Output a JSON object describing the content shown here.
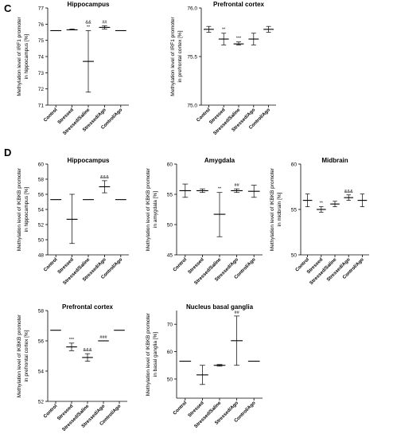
{
  "panel_letters": {
    "c": "C",
    "d": "D"
  },
  "chart_data": [
    {
      "type": "scatter",
      "title": "Hippocampus",
      "ylabel_lines": [
        "Methylation level of IRF1 promoter",
        "in hippocampus [%]"
      ],
      "categories": [
        "Control",
        "Stressed",
        "Stressed/Saline",
        "Stressed/Ago",
        "Control/Ago"
      ],
      "series": [
        {
          "values": [
            75.6,
            75.65,
            73.7,
            75.8,
            75.6
          ],
          "err_low": [
            75.6,
            75.65,
            71.8,
            75.7,
            75.6
          ],
          "err_high": [
            75.6,
            75.7,
            75.6,
            75.9,
            75.6
          ]
        }
      ],
      "annotations": [
        "",
        "",
        "&&\n**",
        "##",
        ""
      ],
      "ylim": [
        71,
        77
      ],
      "yticks": [
        "71",
        "72",
        "73",
        "74",
        "75",
        "76",
        "77"
      ]
    },
    {
      "type": "scatter",
      "title": "Prefrontal cortex",
      "ylabel_lines": [
        "Methylation level of IRF1 promoter",
        "in prefrontal cortex [%]"
      ],
      "categories": [
        "Control",
        "Stressed",
        "Stressed/Saline",
        "Stressed/Ago",
        "Control/Ago"
      ],
      "series": [
        {
          "values": [
            75.78,
            75.68,
            75.63,
            75.68,
            75.78
          ],
          "err_low": [
            75.75,
            75.62,
            75.62,
            75.62,
            75.75
          ],
          "err_high": [
            75.81,
            75.74,
            75.65,
            75.74,
            75.81
          ]
        }
      ],
      "annotations": [
        "",
        "**",
        "***",
        "",
        ""
      ],
      "ylim": [
        75.0,
        76.0
      ],
      "yticks": [
        "75.0",
        "75.5",
        "76.0"
      ]
    },
    {
      "type": "scatter",
      "title": "Hippocampus",
      "ylabel_lines": [
        "Methylation level of IKBKB promoter",
        "in hippocampus [%]"
      ],
      "categories": [
        "Control",
        "Stressed",
        "Stressed/Saline",
        "Stressed/Ago",
        "Control/Ago"
      ],
      "series": [
        {
          "values": [
            55.3,
            52.7,
            55.3,
            57.0,
            55.3
          ],
          "err_low": [
            55.3,
            49.5,
            55.3,
            56.2,
            55.3
          ],
          "err_high": [
            55.3,
            56.0,
            55.3,
            57.8,
            55.3
          ]
        }
      ],
      "annotations": [
        "",
        "",
        "",
        "&&&",
        ""
      ],
      "ylim": [
        48,
        60
      ],
      "yticks": [
        "48",
        "50",
        "52",
        "54",
        "56",
        "58",
        "60"
      ]
    },
    {
      "type": "scatter",
      "title": "Amygdala",
      "ylabel_lines": [
        "Methylation level of IKBKB promoter",
        "in amygdala [%]"
      ],
      "categories": [
        "Control",
        "Stressed",
        "Stressed/Saline",
        "Stressed/Ago",
        "Control/Ago"
      ],
      "series": [
        {
          "values": [
            55.6,
            55.6,
            51.7,
            55.6,
            55.5
          ],
          "err_low": [
            54.5,
            55.3,
            48.0,
            55.3,
            54.5
          ],
          "err_high": [
            56.7,
            55.9,
            55.3,
            55.9,
            56.5
          ]
        }
      ],
      "annotations": [
        "",
        "",
        "**",
        "##",
        ""
      ],
      "ylim": [
        45,
        60
      ],
      "yticks": [
        "45",
        "50",
        "55",
        "60"
      ]
    },
    {
      "type": "scatter",
      "title": "Midbrain",
      "ylabel_lines": [
        "Methylation level of IKBKB promoter",
        "in midbrain [%]"
      ],
      "categories": [
        "Control",
        "Stressed",
        "Stressed/Saline",
        "Stressed/Ago",
        "Control/Ago"
      ],
      "series": [
        {
          "values": [
            56.0,
            55.0,
            55.6,
            56.3,
            56.0
          ],
          "err_low": [
            55.3,
            54.7,
            55.3,
            56.0,
            55.3
          ],
          "err_high": [
            56.7,
            55.3,
            55.9,
            56.6,
            56.7
          ]
        }
      ],
      "annotations": [
        "",
        "**",
        "",
        "&&&",
        ""
      ],
      "ylim": [
        50,
        60
      ],
      "yticks": [
        "50",
        "55",
        "60"
      ]
    },
    {
      "type": "scatter",
      "title": "Prefrontal cortex",
      "ylabel_lines": [
        "Methylation level of IKBKB promoter",
        "in prefrontal cortex [%]"
      ],
      "categories": [
        "Control",
        "Stressed",
        "Stressed/Saline",
        "Stressed/Ago",
        "Control/Ago"
      ],
      "series": [
        {
          "values": [
            56.7,
            55.6,
            54.9,
            56.0,
            56.7
          ],
          "err_low": [
            56.7,
            55.35,
            54.65,
            56.0,
            56.7
          ],
          "err_high": [
            56.7,
            55.85,
            55.15,
            56.0,
            56.7
          ]
        }
      ],
      "annotations": [
        "",
        "***",
        "&&&",
        "###",
        ""
      ],
      "ylim": [
        52,
        58
      ],
      "yticks": [
        "52",
        "54",
        "56",
        "58"
      ]
    },
    {
      "type": "scatter",
      "title": "Nucleus basal ganglia",
      "ylabel_lines": [
        "Methylation level of IKBKB promoter",
        "in basal ganglia [%]"
      ],
      "categories": [
        "Control",
        "Stressed",
        "Stressed/Saline",
        "Stressed/Ago",
        "Control/Ago"
      ],
      "series": [
        {
          "values": [
            56.5,
            51.5,
            55.0,
            64.0,
            56.5
          ],
          "err_low": [
            56.5,
            48.0,
            54.7,
            55.0,
            56.5
          ],
          "err_high": [
            56.5,
            55.0,
            55.3,
            73.0,
            56.5
          ]
        }
      ],
      "annotations": [
        "",
        "",
        "",
        "##",
        ""
      ],
      "ylim": [
        43,
        75
      ],
      "yticks": [
        "50",
        "60",
        "70"
      ]
    }
  ]
}
